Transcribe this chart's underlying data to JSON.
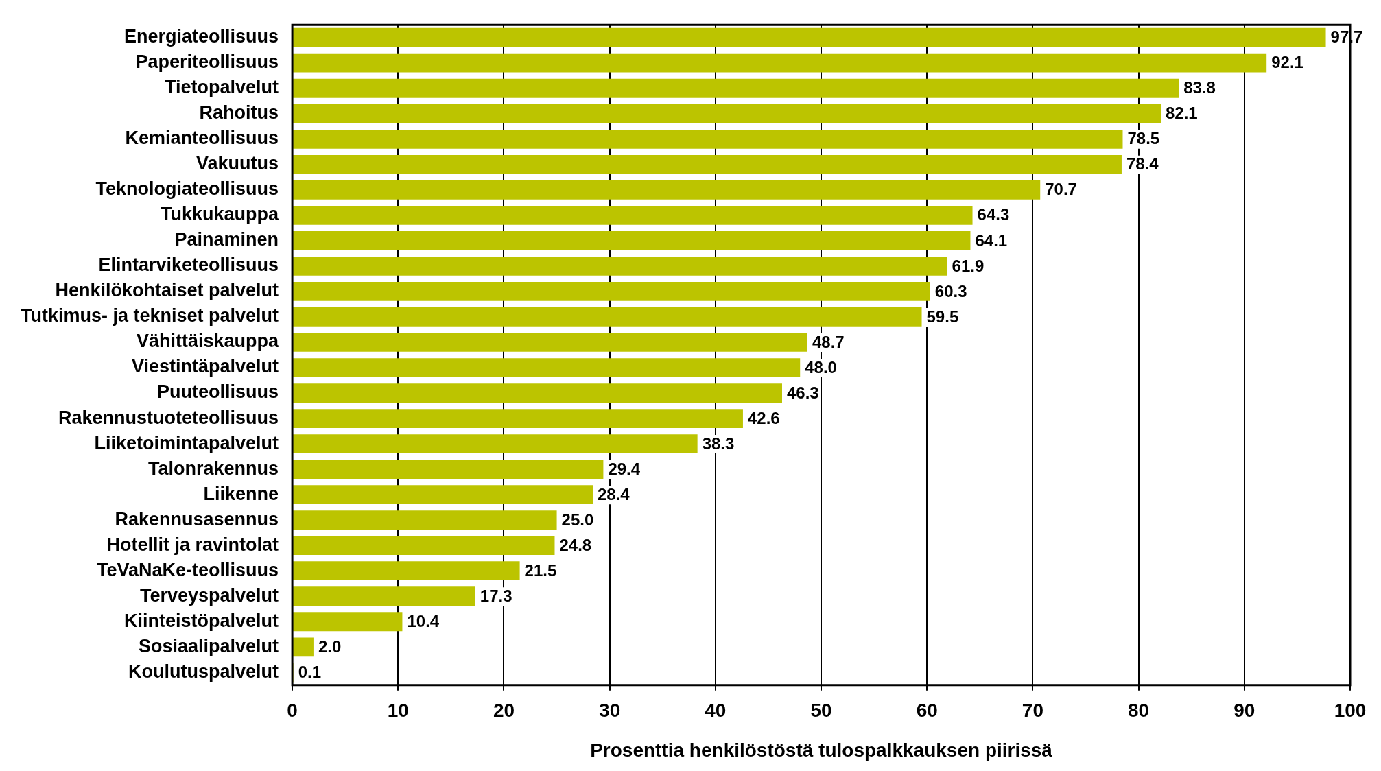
{
  "chart_data": {
    "type": "bar",
    "orientation": "horizontal",
    "xlabel": "Prosenttia henkilöstöstä tulospalkkauksen piirissä",
    "categories": [
      "Energiateollisuus",
      "Paperiteollisuus",
      "Tietopalvelut",
      "Rahoitus",
      "Kemianteollisuus",
      "Vakuutus",
      "Teknologiateollisuus",
      "Tukkukauppa",
      "Painaminen",
      "Elintarviketeollisuus",
      "Henkilökohtaiset palvelut",
      "Tutkimus- ja tekniset palvelut",
      "Vähittäiskauppa",
      "Viestintäpalvelut",
      "Puuteollisuus",
      "Rakennustuoteteollisuus",
      "Liiketoimintapalvelut",
      "Talonrakennus",
      "Liikenne",
      "Rakennusasennus",
      "Hotellit ja ravintolat",
      "TeVaNaKe-teollisuus",
      "Terveyspalvelut",
      "Kiinteistöpalvelut",
      "Sosiaalipalvelut",
      "Koulutuspalvelut"
    ],
    "values": [
      97.7,
      92.1,
      83.8,
      82.1,
      78.5,
      78.4,
      70.7,
      64.3,
      64.1,
      61.9,
      60.3,
      59.5,
      48.7,
      48.0,
      46.3,
      42.6,
      38.3,
      29.4,
      28.4,
      25.0,
      24.8,
      21.5,
      17.3,
      10.4,
      2.0,
      0.1
    ],
    "value_labels": [
      "97.7",
      "92.1",
      "83.8",
      "82.1",
      "78.5",
      "78.4",
      "70.7",
      "64.3",
      "64.1",
      "61.9",
      "60.3",
      "59.5",
      "48.7",
      "48.0",
      "46.3",
      "42.6",
      "38.3",
      "29.4",
      "28.4",
      "25.0",
      "24.8",
      "21.5",
      "17.3",
      "10.4",
      "2.0",
      "0.1"
    ],
    "color": "#bcc400",
    "xlim": [
      0,
      100
    ],
    "xticks": [
      0,
      10,
      20,
      30,
      40,
      50,
      60,
      70,
      80,
      90,
      100
    ],
    "grid": "x",
    "legend": false
  }
}
